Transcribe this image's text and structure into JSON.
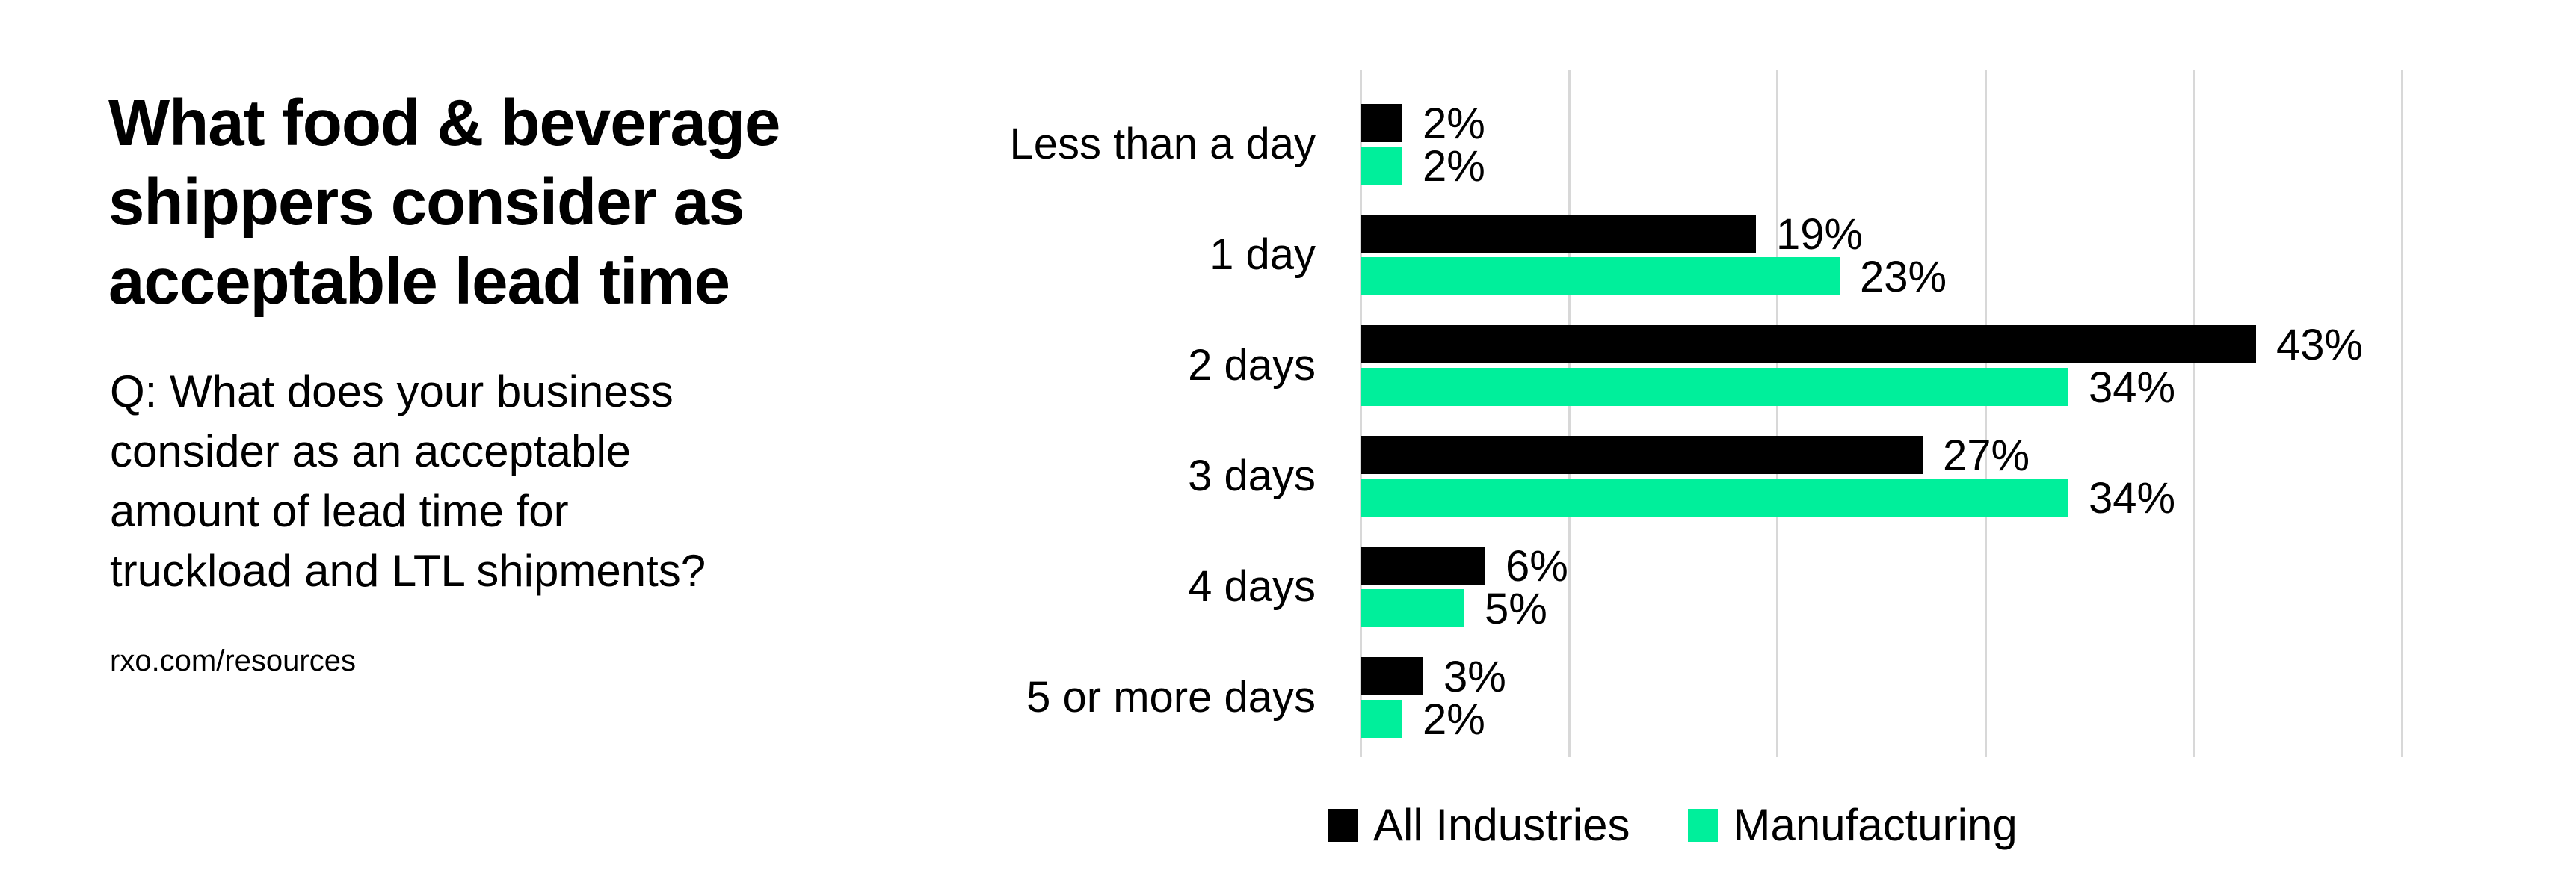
{
  "panel": {
    "title_lines": [
      "What food & beverage",
      "shippers consider as",
      "acceptable lead time"
    ],
    "question_lines": [
      "Q: What does your business",
      "consider as an acceptable",
      "amount of lead time for",
      "truckload and LTL shipments?"
    ],
    "source_url": "rxo.com/resources"
  },
  "chart_data": {
    "type": "bar",
    "orientation": "horizontal",
    "title": "What food & beverage shippers consider as acceptable lead time",
    "categories": [
      "Less than a day",
      "1 day",
      "2 days",
      "3 days",
      "4 days",
      "5 or more days"
    ],
    "series": [
      {
        "name": "All Industries",
        "color": "#000000",
        "values": [
          2,
          19,
          43,
          27,
          6,
          3
        ]
      },
      {
        "name": "Manufacturing",
        "color": "#00ef9b",
        "values": [
          2,
          23,
          34,
          34,
          5,
          2
        ]
      }
    ],
    "value_suffix": "%",
    "xlim": [
      0,
      50
    ],
    "gridline_step": 10,
    "grid": true,
    "legend_position": "bottom",
    "xlabel": "",
    "ylabel": ""
  },
  "colors": {
    "background": "#ffffff",
    "text": "#000000",
    "gridline": "#d8d8d8",
    "all_industries": "#000000",
    "manufacturing": "#00ef9b"
  }
}
